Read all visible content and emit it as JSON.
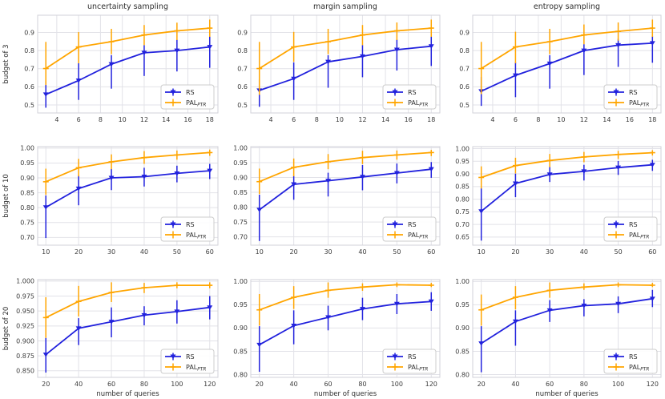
{
  "style": {
    "rs_color": "#2222dd",
    "pal_color": "#ffa500",
    "grid_color": "#e2e2e8",
    "spine_color": "#d2d2d8",
    "text_color": "#2e2e2e",
    "tick_color": "#3c3c3c",
    "legend_border": "#cccccc",
    "background": "#ffffff"
  },
  "legend": {
    "rs": "RS",
    "pal": "PAL",
    "pal_sub": "PTR",
    "position": "lower right"
  },
  "chart_data": [
    {
      "type": "line",
      "title": "uncertainty sampling",
      "ylabel": "budget of 3",
      "xlabel": "",
      "grid": true,
      "x": [
        3,
        6,
        9,
        12,
        15,
        18
      ],
      "xticks": [
        4,
        6,
        8,
        10,
        12,
        14,
        16,
        18
      ],
      "xlim": [
        2.25,
        18.75
      ],
      "ylim": [
        0.456,
        0.995
      ],
      "yticks": [
        0.5,
        0.6,
        0.7,
        0.8,
        0.9
      ],
      "ytick_decimals": 1,
      "series": [
        {
          "name": "RS",
          "color": "#2222dd",
          "marker": "triangle-down",
          "values": [
            0.558,
            0.635,
            0.725,
            0.788,
            0.8,
            0.82
          ],
          "err_low": [
            0.485,
            0.528,
            0.59,
            0.66,
            0.685,
            0.705
          ],
          "err_high": [
            0.63,
            0.73,
            0.775,
            0.83,
            0.86,
            0.88
          ]
        },
        {
          "name": "PAL_PTR",
          "color": "#ffa500",
          "marker": "plus",
          "values": [
            0.701,
            0.82,
            0.849,
            0.886,
            0.909,
            0.924
          ],
          "err_low": [
            0.61,
            0.73,
            0.78,
            0.83,
            0.858,
            0.876
          ],
          "err_high": [
            0.848,
            0.902,
            0.92,
            0.941,
            0.954,
            0.971
          ]
        }
      ]
    },
    {
      "type": "line",
      "title": "margin sampling",
      "ylabel": "",
      "xlabel": "",
      "grid": true,
      "x": [
        3,
        6,
        9,
        12,
        15,
        18
      ],
      "xticks": [
        4,
        6,
        8,
        10,
        12,
        14,
        16,
        18
      ],
      "xlim": [
        2.25,
        18.75
      ],
      "ylim": [
        0.456,
        0.995
      ],
      "yticks": [
        0.5,
        0.6,
        0.7,
        0.8,
        0.9
      ],
      "ytick_decimals": 1,
      "series": [
        {
          "name": "RS",
          "color": "#2222dd",
          "marker": "triangle-down",
          "values": [
            0.58,
            0.645,
            0.738,
            0.768,
            0.805,
            0.824
          ],
          "err_low": [
            0.49,
            0.528,
            0.595,
            0.653,
            0.69,
            0.715
          ],
          "err_high": [
            0.64,
            0.735,
            0.775,
            0.83,
            0.862,
            0.88
          ]
        },
        {
          "name": "PAL_PTR",
          "color": "#ffa500",
          "marker": "plus",
          "values": [
            0.701,
            0.82,
            0.849,
            0.886,
            0.909,
            0.924
          ],
          "err_low": [
            0.556,
            0.738,
            0.78,
            0.83,
            0.858,
            0.876
          ],
          "err_high": [
            0.848,
            0.903,
            0.92,
            0.941,
            0.955,
            0.971
          ]
        }
      ]
    },
    {
      "type": "line",
      "title": "entropy sampling",
      "ylabel": "",
      "xlabel": "",
      "grid": true,
      "x": [
        3,
        6,
        9,
        12,
        15,
        18
      ],
      "xticks": [
        4,
        6,
        8,
        10,
        12,
        14,
        16,
        18
      ],
      "xlim": [
        2.25,
        18.75
      ],
      "ylim": [
        0.456,
        0.995
      ],
      "yticks": [
        0.5,
        0.6,
        0.7,
        0.8,
        0.9
      ],
      "ytick_decimals": 1,
      "series": [
        {
          "name": "RS",
          "color": "#2222dd",
          "marker": "triangle-down",
          "values": [
            0.576,
            0.663,
            0.728,
            0.8,
            0.83,
            0.841
          ],
          "err_low": [
            0.495,
            0.543,
            0.59,
            0.665,
            0.71,
            0.733
          ],
          "err_high": [
            0.655,
            0.735,
            0.775,
            0.835,
            0.865,
            0.88
          ]
        },
        {
          "name": "PAL_PTR",
          "color": "#ffa500",
          "marker": "plus",
          "values": [
            0.701,
            0.82,
            0.849,
            0.886,
            0.906,
            0.924
          ],
          "err_low": [
            0.56,
            0.73,
            0.78,
            0.835,
            0.855,
            0.876
          ],
          "err_high": [
            0.848,
            0.904,
            0.92,
            0.944,
            0.955,
            0.971
          ]
        }
      ]
    },
    {
      "type": "line",
      "title": "",
      "ylabel": "budget of 10",
      "xlabel": "",
      "grid": true,
      "x": [
        10,
        20,
        30,
        40,
        50,
        60
      ],
      "xticks": [
        10,
        20,
        30,
        40,
        50,
        60
      ],
      "xlim": [
        7.5,
        62.5
      ],
      "ylim": [
        0.674,
        1.005
      ],
      "yticks": [
        0.7,
        0.75,
        0.8,
        0.85,
        0.9,
        0.95,
        1.0
      ],
      "ytick_decimals": 2,
      "series": [
        {
          "name": "RS",
          "color": "#2222dd",
          "marker": "triangle-down",
          "values": [
            0.801,
            0.864,
            0.9,
            0.904,
            0.915,
            0.924
          ],
          "err_low": [
            0.698,
            0.808,
            0.859,
            0.871,
            0.885,
            0.896
          ],
          "err_high": [
            0.841,
            0.909,
            0.93,
            0.934,
            0.941,
            0.947
          ]
        },
        {
          "name": "PAL_PTR",
          "color": "#ffa500",
          "marker": "plus",
          "values": [
            0.887,
            0.934,
            0.954,
            0.968,
            0.977,
            0.985
          ],
          "err_low": [
            0.843,
            0.905,
            0.929,
            0.947,
            0.961,
            0.974
          ],
          "err_high": [
            0.931,
            0.964,
            0.979,
            0.99,
            0.992,
            0.995
          ]
        }
      ]
    },
    {
      "type": "line",
      "title": "",
      "ylabel": "",
      "xlabel": "",
      "grid": true,
      "x": [
        10,
        20,
        30,
        40,
        50,
        60
      ],
      "xticks": [
        10,
        20,
        30,
        40,
        50,
        60
      ],
      "xlim": [
        7.5,
        62.5
      ],
      "ylim": [
        0.672,
        1.004
      ],
      "yticks": [
        0.7,
        0.75,
        0.8,
        0.85,
        0.9,
        0.95,
        1.0
      ],
      "ytick_decimals": 2,
      "series": [
        {
          "name": "RS",
          "color": "#2222dd",
          "marker": "triangle-down",
          "values": [
            0.791,
            0.877,
            0.889,
            0.902,
            0.915,
            0.928
          ],
          "err_low": [
            0.686,
            0.825,
            0.836,
            0.857,
            0.88,
            0.899
          ],
          "err_high": [
            0.842,
            0.906,
            0.916,
            0.942,
            0.947,
            0.952
          ]
        },
        {
          "name": "PAL_PTR",
          "color": "#ffa500",
          "marker": "plus",
          "values": [
            0.886,
            0.934,
            0.953,
            0.967,
            0.976,
            0.984
          ],
          "err_low": [
            0.844,
            0.904,
            0.928,
            0.945,
            0.96,
            0.972
          ],
          "err_high": [
            0.93,
            0.964,
            0.979,
            0.99,
            0.991,
            0.993
          ]
        }
      ]
    },
    {
      "type": "line",
      "title": "",
      "ylabel": "",
      "xlabel": "",
      "grid": true,
      "x": [
        10,
        20,
        30,
        40,
        50,
        60
      ],
      "xticks": [
        10,
        20,
        30,
        40,
        50,
        60
      ],
      "xlim": [
        7.5,
        62.5
      ],
      "ylim": [
        0.618,
        1.008
      ],
      "yticks": [
        0.65,
        0.7,
        0.75,
        0.8,
        0.85,
        0.9,
        0.95,
        1.0
      ],
      "ytick_decimals": 2,
      "series": [
        {
          "name": "RS",
          "color": "#2222dd",
          "marker": "triangle-down",
          "values": [
            0.752,
            0.862,
            0.898,
            0.91,
            0.925,
            0.936
          ],
          "err_low": [
            0.636,
            0.808,
            0.868,
            0.874,
            0.896,
            0.912
          ],
          "err_high": [
            0.845,
            0.901,
            0.927,
            0.936,
            0.951,
            0.956
          ]
        },
        {
          "name": "PAL_PTR",
          "color": "#ffa500",
          "marker": "plus",
          "values": [
            0.886,
            0.933,
            0.953,
            0.967,
            0.977,
            0.984
          ],
          "err_low": [
            0.842,
            0.902,
            0.927,
            0.946,
            0.959,
            0.973
          ],
          "err_high": [
            0.93,
            0.964,
            0.979,
            0.987,
            0.991,
            0.994
          ]
        }
      ]
    },
    {
      "type": "line",
      "title": "",
      "ylabel": "budget of 20",
      "xlabel": "number of queries",
      "grid": true,
      "x": [
        20,
        40,
        60,
        80,
        100,
        120
      ],
      "xticks": [
        20,
        40,
        60,
        80,
        100,
        120
      ],
      "xlim": [
        15,
        125
      ],
      "ylim": [
        0.839,
        1.0025
      ],
      "yticks": [
        0.85,
        0.875,
        0.9,
        0.925,
        0.95,
        0.975,
        1.0
      ],
      "ytick_decimals": 3,
      "series": [
        {
          "name": "RS",
          "color": "#2222dd",
          "marker": "triangle-down",
          "values": [
            0.877,
            0.921,
            0.932,
            0.943,
            0.949,
            0.956
          ],
          "err_low": [
            0.847,
            0.893,
            0.906,
            0.926,
            0.929,
            0.936
          ],
          "err_high": [
            0.905,
            0.938,
            0.956,
            0.958,
            0.968,
            0.975
          ]
        },
        {
          "name": "PAL_PTR",
          "color": "#ffa500",
          "marker": "plus",
          "values": [
            0.939,
            0.966,
            0.981,
            0.989,
            0.993,
            0.993
          ],
          "err_low": [
            0.905,
            0.941,
            0.965,
            0.98,
            0.988,
            0.988
          ],
          "err_high": [
            0.973,
            0.992,
            0.998,
            0.997,
            0.998,
            0.998
          ]
        }
      ]
    },
    {
      "type": "line",
      "title": "",
      "ylabel": "",
      "xlabel": "number of queries",
      "grid": true,
      "x": [
        20,
        40,
        60,
        80,
        100,
        120
      ],
      "xticks": [
        20,
        40,
        60,
        80,
        100,
        120
      ],
      "xlim": [
        15,
        125
      ],
      "ylim": [
        0.794,
        1.004
      ],
      "yticks": [
        0.8,
        0.85,
        0.9,
        0.95,
        1.0
      ],
      "ytick_decimals": 2,
      "series": [
        {
          "name": "RS",
          "color": "#2222dd",
          "marker": "triangle-down",
          "values": [
            0.864,
            0.905,
            0.923,
            0.941,
            0.952,
            0.957
          ],
          "err_low": [
            0.806,
            0.865,
            0.895,
            0.917,
            0.93,
            0.937
          ],
          "err_high": [
            0.904,
            0.938,
            0.948,
            0.965,
            0.973,
            0.977
          ]
        },
        {
          "name": "PAL_PTR",
          "color": "#ffa500",
          "marker": "plus",
          "values": [
            0.939,
            0.966,
            0.981,
            0.988,
            0.993,
            0.992
          ],
          "err_low": [
            0.905,
            0.941,
            0.965,
            0.98,
            0.988,
            0.988
          ],
          "err_high": [
            0.973,
            0.99,
            0.998,
            0.996,
            0.998,
            0.997
          ]
        }
      ]
    },
    {
      "type": "line",
      "title": "",
      "ylabel": "",
      "xlabel": "number of queries",
      "grid": true,
      "x": [
        20,
        40,
        60,
        80,
        100,
        120
      ],
      "xticks": [
        20,
        40,
        60,
        80,
        100,
        120
      ],
      "xlim": [
        15,
        125
      ],
      "ylim": [
        0.794,
        1.004
      ],
      "yticks": [
        0.8,
        0.85,
        0.9,
        0.95,
        1.0
      ],
      "ytick_decimals": 2,
      "series": [
        {
          "name": "RS",
          "color": "#2222dd",
          "marker": "triangle-down",
          "values": [
            0.867,
            0.914,
            0.938,
            0.948,
            0.952,
            0.963
          ],
          "err_low": [
            0.805,
            0.862,
            0.913,
            0.925,
            0.932,
            0.945
          ],
          "err_high": [
            0.904,
            0.938,
            0.96,
            0.962,
            0.968,
            0.982
          ]
        },
        {
          "name": "PAL_PTR",
          "color": "#ffa500",
          "marker": "plus",
          "values": [
            0.939,
            0.966,
            0.981,
            0.988,
            0.993,
            0.992
          ],
          "err_low": [
            0.905,
            0.94,
            0.965,
            0.982,
            0.988,
            0.988
          ],
          "err_high": [
            0.972,
            0.99,
            0.998,
            0.996,
            0.998,
            0.997
          ]
        }
      ]
    }
  ]
}
